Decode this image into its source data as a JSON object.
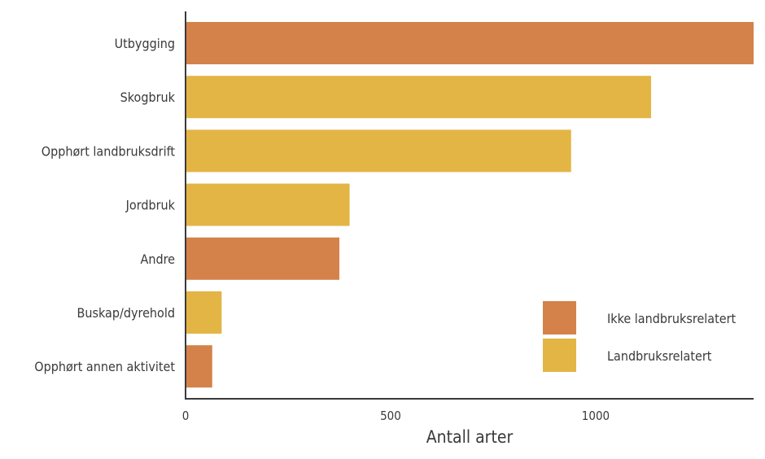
{
  "chart_data": {
    "type": "bar",
    "orientation": "horizontal",
    "categories": [
      "Utbygging",
      "Skogbruk",
      "Opphørt landbruksdrift",
      "Jordbruk",
      "Andre",
      "Buskap/dyrehold",
      "Opphørt annen aktivitet"
    ],
    "values": [
      1390,
      1135,
      940,
      400,
      375,
      88,
      65
    ],
    "groups": [
      "Ikke landbruksrelatert",
      "Landbruksrelatert",
      "Landbruksrelatert",
      "Landbruksrelatert",
      "Ikke landbruksrelatert",
      "Landbruksrelatert",
      "Ikke landbruksrelatert"
    ],
    "xlabel": "Antall arter",
    "ylabel": "",
    "xlim": [
      0,
      1385
    ],
    "xticks": [
      0,
      500,
      1000
    ],
    "grid": false,
    "legend": {
      "position": "bottom-right",
      "entries": [
        {
          "name": "Ikke landbruksrelatert",
          "color": "#D4824A"
        },
        {
          "name": "Landbruksrelatert",
          "color": "#E3B545"
        }
      ]
    }
  }
}
